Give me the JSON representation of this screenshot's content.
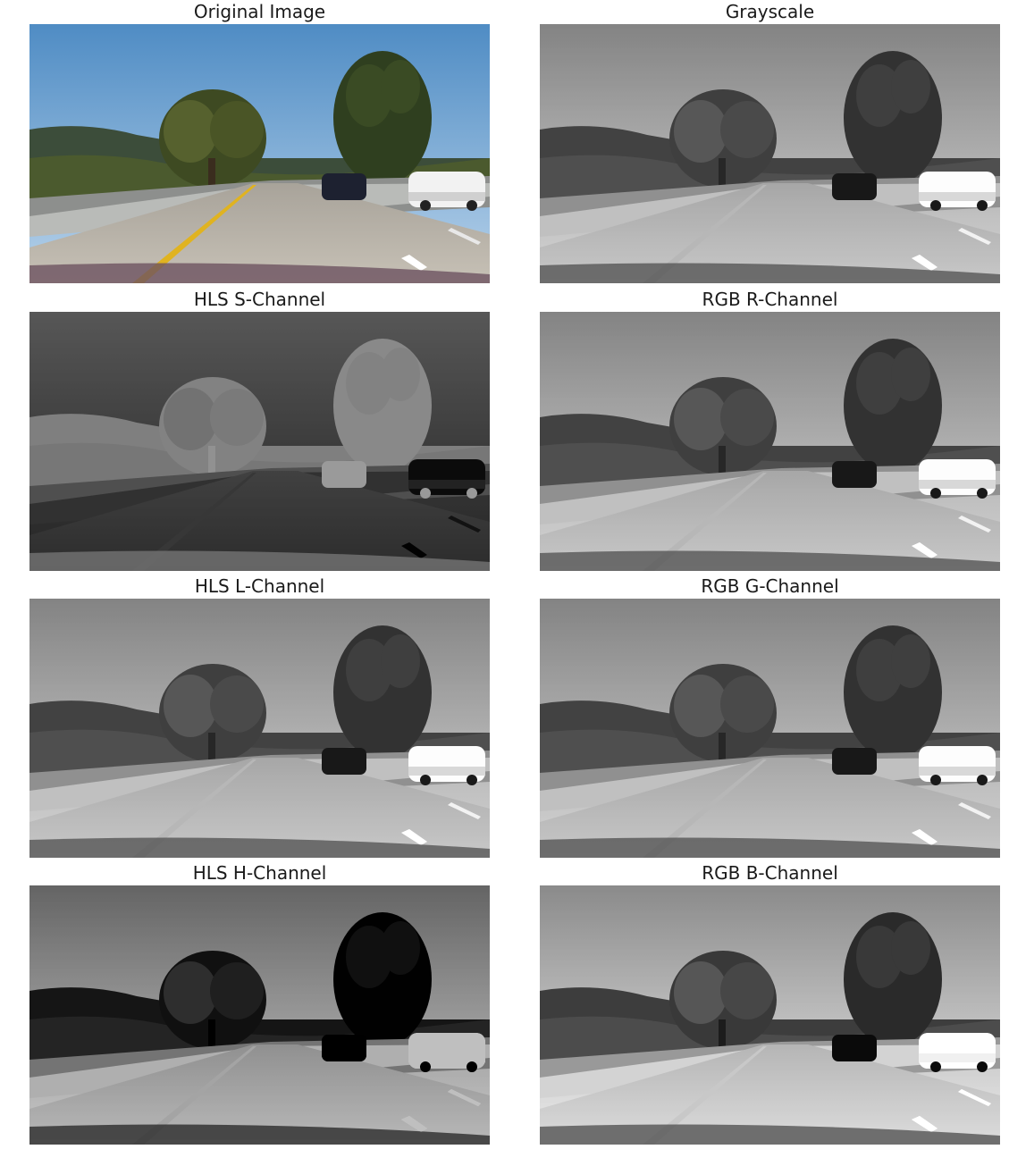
{
  "panels": [
    {
      "title": "Original Image",
      "image": "road-scene-color"
    },
    {
      "title": "Grayscale",
      "image": "road-scene-grayscale"
    },
    {
      "title": "HLS S-Channel",
      "image": "road-scene-hls-s"
    },
    {
      "title": "RGB R-Channel",
      "image": "road-scene-rgb-r"
    },
    {
      "title": "HLS L-Channel",
      "image": "road-scene-hls-l"
    },
    {
      "title": "RGB G-Channel",
      "image": "road-scene-rgb-g"
    },
    {
      "title": "HLS H-Channel",
      "image": "road-scene-hls-h"
    },
    {
      "title": "RGB B-Channel",
      "image": "road-scene-rgb-b"
    }
  ]
}
